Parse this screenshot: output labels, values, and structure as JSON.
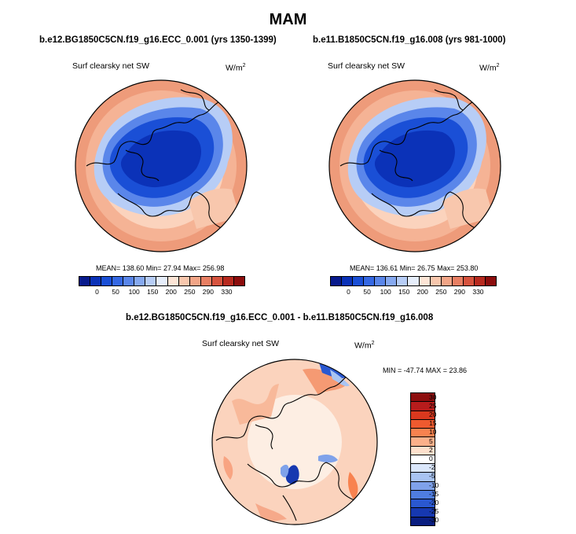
{
  "title": "MAM",
  "panels": [
    {
      "title": "b.e12.BG1850C5CN.f19_g16.ECC_0.001 (yrs 1350-1399)",
      "variable": "Surf clearsky net SW",
      "units": "W/m",
      "units_exp": "2",
      "stats": "MEAN= 138.60  Min=  27.94  Max= 256.98"
    },
    {
      "title": "b.e11.B1850C5CN.f19_g16.008 (yrs 981-1000)",
      "variable": "Surf clearsky net SW",
      "units": "W/m",
      "units_exp": "2",
      "stats": "MEAN= 136.61  Min=  26.75  Max= 253.80"
    }
  ],
  "diff": {
    "title": "b.e12.BG1850C5CN.f19_g16.ECC_0.001 - b.e11.B1850C5CN.f19_g16.008",
    "variable": "Surf clearsky net SW",
    "units": "W/m",
    "units_exp": "2",
    "stats": "MIN = -47.74 MAX =  23.86"
  },
  "colorbar_top": {
    "colors": [
      "#081a8c",
      "#0b32b8",
      "#1a4fd6",
      "#3568e3",
      "#5a86ea",
      "#86a9f0",
      "#b7cdf6",
      "#e6eefb",
      "#fde5d6",
      "#f8c7ad",
      "#f2a587",
      "#e87f63",
      "#d6533e",
      "#b72a1f",
      "#8c0d0d"
    ],
    "labels": [
      "0",
      "50",
      "100",
      "150",
      "200",
      "250",
      "290",
      "330"
    ]
  },
  "colorbar_diff": {
    "colors": [
      "#8c0d0d",
      "#b71c1c",
      "#d9381e",
      "#ef5a2f",
      "#f8824f",
      "#fbb08a",
      "#fde0cc",
      "#ffffff",
      "#dbe7fb",
      "#a9c4f2",
      "#7fa2ea",
      "#4f7de0",
      "#2a58d1",
      "#1638b0",
      "#0a1e80"
    ],
    "labels": [
      "30",
      "25",
      "20",
      "15",
      "10",
      "5",
      "2",
      "0",
      "-2",
      "-5",
      "-10",
      "-15",
      "-20",
      "-25",
      "-30"
    ]
  }
}
